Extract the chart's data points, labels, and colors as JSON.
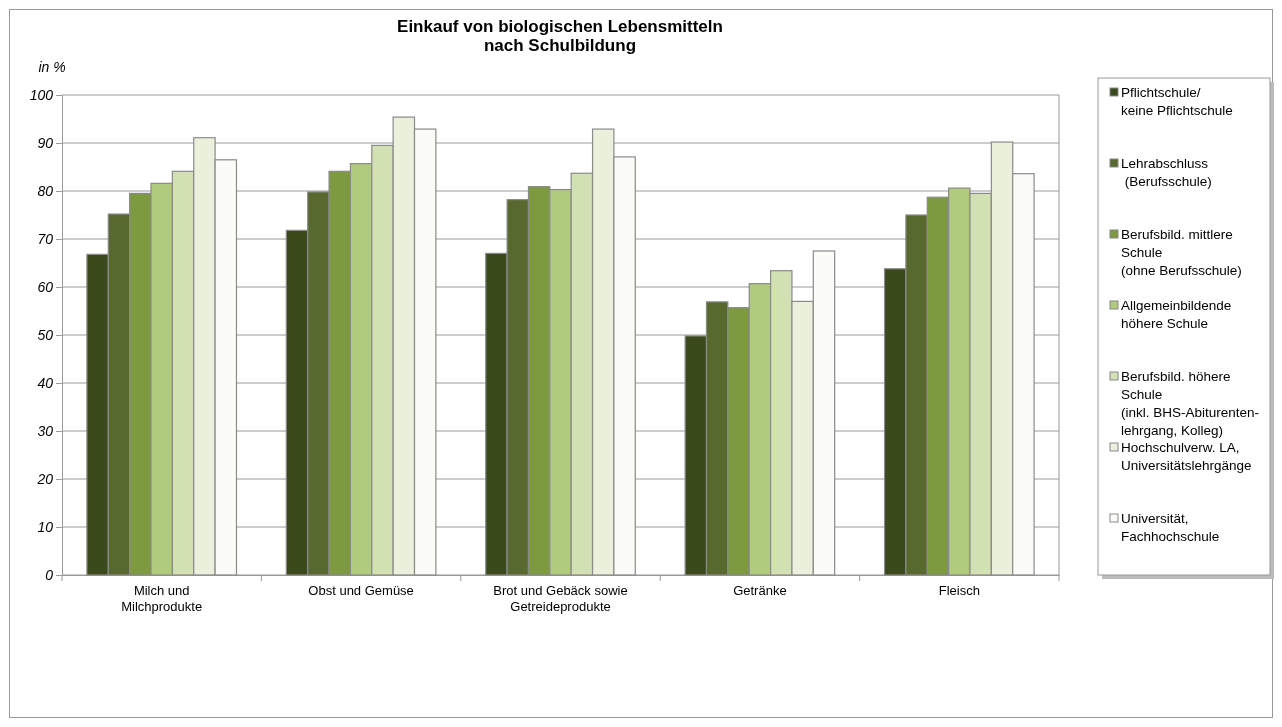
{
  "chart_data": {
    "type": "bar",
    "title": "Einkauf von biologischen Lebensmitteln\nnach Schulbildung",
    "ylabel": "in %",
    "categories": [
      "Milch und\nMilchprodukte",
      "Obst und Gemüse",
      "Brot und Gebäck sowie\nGetreideprodukte",
      "Getränke",
      "Fleisch"
    ],
    "series": [
      {
        "name": "Pflichtschule/\nkeine Pflichtschule",
        "color": "#3a4a1d",
        "values": [
          66.8,
          71.8,
          67.0,
          49.8,
          63.8
        ]
      },
      {
        "name": "Lehrabschluss\n (Berufsschule)",
        "color": "#58692f",
        "values": [
          75.2,
          79.8,
          78.2,
          56.9,
          75.0
        ]
      },
      {
        "name": "Berufsbild. mittlere\nSchule\n(ohne Berufsschule)",
        "color": "#7d9a41",
        "values": [
          79.5,
          84.1,
          80.9,
          55.7,
          78.7
        ]
      },
      {
        "name": "Allgemeinbildende\nhöhere Schule",
        "color": "#b1cb7c",
        "values": [
          81.6,
          85.7,
          80.3,
          60.7,
          80.6
        ]
      },
      {
        "name": "Berufsbild. höhere\nSchule\n(inkl. BHS-Abiturenten-\nlehrgang, Kolleg)",
        "color": "#d1e1b3",
        "values": [
          84.1,
          89.5,
          83.7,
          63.4,
          79.5
        ]
      },
      {
        "name": "Hochschulverw. LA,\nUniversitätslehrgänge",
        "color": "#ebf0dd",
        "values": [
          91.1,
          95.4,
          92.9,
          57.0,
          90.2
        ]
      },
      {
        "name": "Universität,\nFachhochschule",
        "color": "#fbfcf7",
        "values": [
          86.5,
          92.9,
          87.1,
          67.5,
          83.6
        ]
      }
    ],
    "ylim": [
      0,
      100
    ],
    "yticks": [
      0,
      10,
      20,
      30,
      40,
      50,
      60,
      70,
      80,
      90,
      100
    ],
    "grid": "y",
    "legend": "right"
  }
}
